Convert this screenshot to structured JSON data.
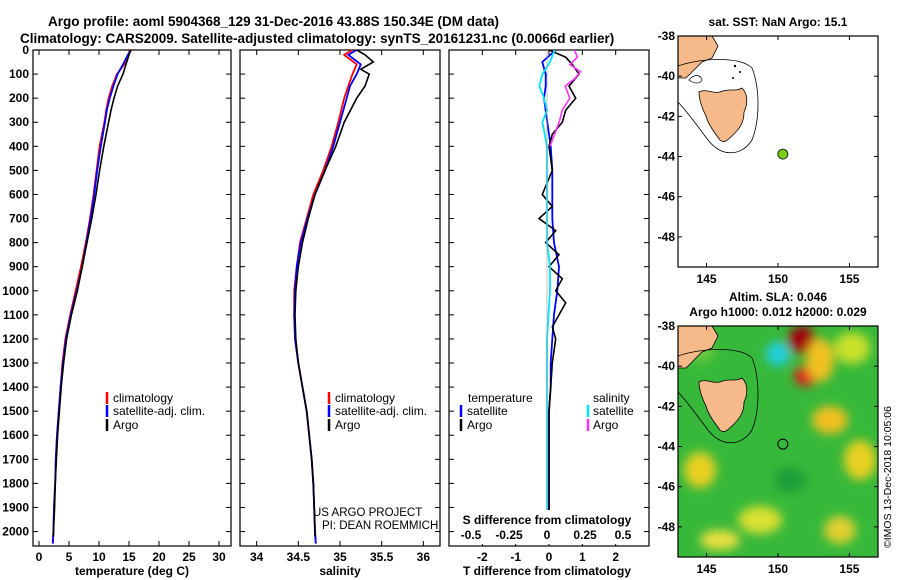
{
  "header": {
    "line1": "Argo profile: aoml 5904368_129 31-Dec-2016 43.88S 150.34E (DM data)",
    "line2": "Climatology: CARS2009. Satellite-adjusted climatology: synTS_20161231.nc (0.0066d earlier)"
  },
  "colors": {
    "climatology": "#ff0000",
    "satellite": "#0000ff",
    "argo": "#000000",
    "sal_satellite": "#00e5ff",
    "sal_argo": "#ff33ff",
    "land": "#f6b98a",
    "marker": "#7ccc1a"
  },
  "depth_axis": {
    "ticks": [
      0,
      100,
      200,
      300,
      400,
      500,
      600,
      700,
      800,
      900,
      1000,
      1100,
      1200,
      1300,
      1400,
      1500,
      1600,
      1700,
      1800,
      1900,
      2000
    ],
    "ylim": [
      0,
      2060
    ]
  },
  "chart_data": [
    {
      "type": "line",
      "id": "temperature",
      "xlabel": "temperature (deg C)",
      "xlim": [
        -1,
        32
      ],
      "xticks": [
        0,
        5,
        10,
        15,
        20,
        25,
        30
      ],
      "legend": {
        "climatology": "climatology",
        "satellite": "satellite-adj. clim.",
        "argo": "Argo"
      },
      "series": [
        {
          "name": "climatology",
          "depth": [
            0,
            20,
            60,
            100,
            150,
            200,
            250,
            300,
            400,
            500,
            600,
            700,
            800,
            900,
            1000,
            1100,
            1200,
            1300,
            1400,
            1500,
            1600,
            1700,
            1800,
            1900,
            2000,
            2050
          ],
          "values": [
            15.2,
            14.9,
            14.2,
            13.0,
            12.2,
            11.6,
            11.2,
            10.9,
            10.1,
            9.6,
            9.1,
            8.5,
            7.8,
            7.0,
            6.1,
            5.2,
            4.4,
            3.9,
            3.6,
            3.3,
            3.0,
            2.8,
            2.7,
            2.5,
            2.4,
            2.3
          ]
        },
        {
          "name": "satellite",
          "depth": [
            0,
            20,
            60,
            100,
            150,
            200,
            250,
            300,
            400,
            500,
            600,
            700,
            800,
            900,
            1000,
            1100,
            1200,
            1300,
            1400,
            1500,
            1600,
            1700,
            1800,
            1900,
            2000,
            2050
          ],
          "values": [
            15.4,
            14.8,
            14.0,
            13.1,
            12.4,
            11.8,
            11.3,
            11.0,
            10.3,
            9.7,
            9.2,
            8.6,
            7.9,
            7.2,
            6.3,
            5.3,
            4.5,
            4.0,
            3.6,
            3.3,
            3.0,
            2.8,
            2.7,
            2.5,
            2.4,
            2.3
          ]
        },
        {
          "name": "Argo",
          "depth": [
            0,
            20,
            60,
            100,
            150,
            200,
            250,
            300,
            400,
            500,
            600,
            700,
            800,
            900,
            1000,
            1100,
            1200,
            1300,
            1400,
            1500,
            1600,
            1700,
            1800,
            1900,
            2000,
            2020
          ],
          "values": [
            15.3,
            15.0,
            14.5,
            14.0,
            13.1,
            12.5,
            12.0,
            11.6,
            10.8,
            10.1,
            9.5,
            8.8,
            8.0,
            7.2,
            6.4,
            5.4,
            4.6,
            4.1,
            3.7,
            3.4,
            3.1,
            2.9,
            2.7,
            2.6,
            2.4,
            2.4
          ]
        }
      ]
    },
    {
      "type": "line",
      "id": "salinity",
      "xlabel": "salinity",
      "xlim": [
        33.8,
        36.2
      ],
      "xticks": [
        34,
        34.5,
        35,
        35.5,
        36
      ],
      "legend": {
        "climatology": "climatology",
        "satellite": "satellite-adj. clim.",
        "argo": "Argo"
      },
      "series": [
        {
          "name": "climatology",
          "depth": [
            0,
            20,
            60,
            100,
            150,
            200,
            300,
            400,
            500,
            600,
            700,
            800,
            900,
            1000,
            1100,
            1200,
            1300,
            1400,
            1500,
            1600,
            1700,
            1800,
            1900,
            2000,
            2050
          ],
          "values": [
            35.15,
            35.05,
            35.2,
            35.15,
            35.1,
            35.05,
            34.98,
            34.9,
            34.8,
            34.68,
            34.6,
            34.52,
            34.48,
            34.45,
            34.45,
            34.46,
            34.5,
            34.55,
            34.6,
            34.63,
            34.66,
            34.68,
            34.69,
            34.7,
            34.71
          ]
        },
        {
          "name": "satellite",
          "depth": [
            0,
            20,
            60,
            100,
            150,
            200,
            300,
            400,
            500,
            600,
            700,
            800,
            900,
            1000,
            1100,
            1200,
            1300,
            1400,
            1500,
            1600,
            1700,
            1800,
            1900,
            2000,
            2050
          ],
          "values": [
            35.2,
            35.1,
            35.25,
            35.2,
            35.12,
            35.08,
            35.0,
            34.92,
            34.82,
            34.7,
            34.61,
            34.53,
            34.48,
            34.46,
            34.45,
            34.46,
            34.5,
            34.55,
            34.6,
            34.63,
            34.66,
            34.68,
            34.69,
            34.7,
            34.71
          ]
        },
        {
          "name": "Argo",
          "depth": [
            0,
            20,
            50,
            80,
            100,
            150,
            200,
            300,
            400,
            500,
            600,
            700,
            800,
            900,
            1000,
            1100,
            1200,
            1300,
            1400,
            1500,
            1600,
            1700,
            1800,
            1900,
            2000,
            2020
          ],
          "values": [
            35.2,
            35.3,
            35.4,
            35.25,
            35.35,
            35.3,
            35.2,
            35.05,
            34.95,
            34.82,
            34.7,
            34.62,
            34.55,
            34.5,
            34.47,
            34.46,
            34.47,
            34.5,
            34.55,
            34.6,
            34.63,
            34.66,
            34.68,
            34.69,
            34.7,
            34.7
          ]
        }
      ]
    },
    {
      "type": "line",
      "id": "difference",
      "xlabel": "T difference from climatology",
      "xlabel_top": "S difference from climatology",
      "xlim": [
        -3,
        3
      ],
      "xticks": [
        -2,
        -1,
        0,
        1,
        2
      ],
      "xticks_top": [
        {
          "v": -0.5,
          "label": "-0.5"
        },
        {
          "v": -0.25,
          "label": "-0.25"
        },
        {
          "v": 0,
          "label": "0"
        },
        {
          "v": 0.25,
          "label": "0.25"
        },
        {
          "v": 0.5,
          "label": "0.5"
        }
      ],
      "legend": {
        "temperature": "temperature",
        "salinity": "salinity",
        "satellite": "satellite",
        "argo": "Argo"
      },
      "series": [
        {
          "name": "temperature satellite",
          "depth": [
            0,
            50,
            100,
            150,
            200,
            300,
            400,
            500,
            600,
            700,
            800,
            900,
            1000,
            1100,
            1200,
            1300,
            1400,
            1500,
            1600,
            1700,
            1800,
            1900,
            2000,
            2050
          ],
          "values": [
            0.2,
            -0.2,
            -0.1,
            -0.1,
            -0.15,
            -0.05,
            0.05,
            0.1,
            0.1,
            0.1,
            0.15,
            0.3,
            0.25,
            0.15,
            0.1,
            0.05,
            0.05,
            0.0,
            0.0,
            0.0,
            0.0,
            0.0,
            0.0,
            0.0
          ]
        },
        {
          "name": "temperature Argo",
          "depth": [
            0,
            30,
            60,
            100,
            150,
            200,
            250,
            300,
            350,
            400,
            500,
            600,
            650,
            700,
            750,
            800,
            850,
            900,
            950,
            1000,
            1050,
            1100,
            1150,
            1200,
            1300,
            1400,
            1500,
            1600,
            1700,
            1800,
            1900,
            2000,
            2020
          ],
          "values": [
            0.0,
            0.5,
            0.7,
            0.9,
            0.6,
            0.8,
            0.5,
            0.4,
            0.1,
            0.0,
            0.1,
            -0.2,
            0.1,
            -0.3,
            0.2,
            -0.1,
            0.3,
            0.0,
            0.4,
            0.2,
            0.5,
            0.3,
            0.1,
            0.2,
            0.1,
            0.05,
            0.0,
            0.0,
            0.0,
            0.0,
            0.0,
            0.0,
            0.0
          ]
        },
        {
          "name": "salinity satellite",
          "depth": [
            0,
            50,
            100,
            150,
            200,
            250,
            300,
            400,
            500,
            600,
            700,
            800,
            900,
            1000,
            1100,
            1200,
            1300,
            1400,
            1500,
            1600,
            1700,
            1800,
            1900,
            2000,
            2050
          ],
          "values": [
            0.05,
            0.02,
            -0.03,
            -0.05,
            -0.02,
            0.0,
            -0.03,
            0.0,
            0.0,
            0.0,
            0.0,
            0.0,
            0.02,
            0.02,
            0.01,
            0.0,
            0.0,
            0.0,
            0.0,
            0.0,
            0.0,
            0.0,
            0.0,
            0.0,
            0.0
          ]
        },
        {
          "name": "salinity Argo",
          "depth": [
            0,
            30,
            60,
            90,
            120,
            150,
            200,
            250,
            300,
            350,
            400
          ],
          "values": [
            0.18,
            0.2,
            0.15,
            0.22,
            0.18,
            0.12,
            0.15,
            0.1,
            0.08,
            0.05,
            0.02
          ]
        }
      ]
    },
    {
      "type": "map",
      "id": "sst-map",
      "title": "sat. SST: NaN Argo: 15.1",
      "xlim": [
        143,
        157
      ],
      "ylim": [
        -49.5,
        -38
      ],
      "xticks": [
        145,
        150,
        155
      ],
      "yticks": [
        -38,
        -40,
        -42,
        -44,
        -46,
        -48
      ],
      "marker": {
        "lon": 150.34,
        "lat": -43.88
      }
    },
    {
      "type": "heatmap",
      "id": "sla-map",
      "title": "Altim. SLA: 0.046",
      "subtitle": "Argo h1000: 0.012 h2000: 0.029",
      "xlim": [
        143,
        157
      ],
      "ylim": [
        -49.5,
        -38
      ],
      "xticks": [
        145,
        150,
        155
      ],
      "yticks": [
        -38,
        -40,
        -42,
        -44,
        -46,
        -48
      ],
      "marker": {
        "lon": 150.34,
        "lat": -43.88
      }
    }
  ],
  "credits": {
    "line1": "US ARGO PROJECT",
    "line2": "PI: DEAN ROEMMICH",
    "imos": "©IMOS 13-Dec-2018 10:05:06"
  }
}
